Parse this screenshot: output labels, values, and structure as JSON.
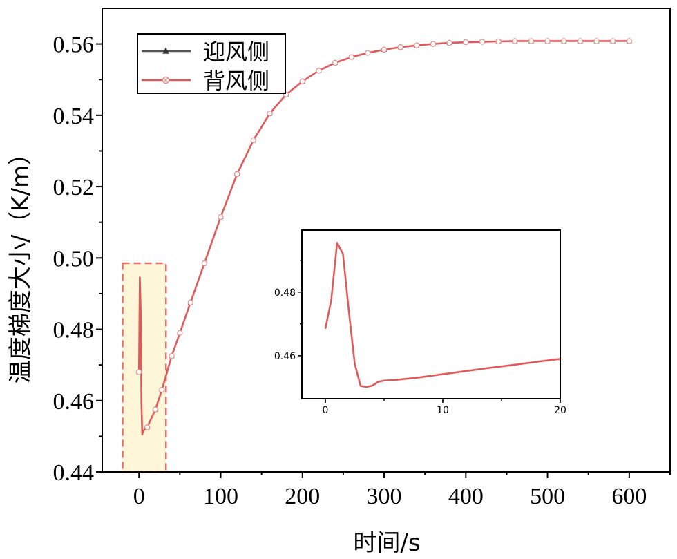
{
  "chart_data": [
    {
      "type": "line",
      "xlabel": "时间/s",
      "ylabel": "温度梯度大小/（K/m）",
      "xlim": [
        -45,
        650
      ],
      "ylim": [
        0.44,
        0.57
      ],
      "xticks": [
        "0",
        "100",
        "200",
        "300",
        "400",
        "500",
        "600"
      ],
      "yticks": [
        "0.44",
        "0.46",
        "0.48",
        "0.50",
        "0.52",
        "0.54",
        "0.56"
      ],
      "legend": "top-left",
      "grid": false,
      "highlight_region": {
        "x": [
          -20,
          33
        ],
        "y": [
          0.44,
          0.4985
        ]
      },
      "series": [
        {
          "name": "迎风侧",
          "color": "#555555",
          "marker": "triangle",
          "x": [
            0,
            1,
            2,
            3,
            4,
            5,
            10,
            20,
            28,
            40,
            50,
            63,
            80,
            100,
            120,
            140,
            160,
            180,
            200,
            220,
            240,
            260,
            280,
            300,
            320,
            340,
            360,
            380,
            400,
            420,
            440,
            460,
            480,
            500,
            520,
            540,
            560,
            580,
            600
          ],
          "y": [
            0.468,
            0.4945,
            0.486,
            0.459,
            0.4505,
            0.4515,
            0.4525,
            0.4575,
            0.463,
            0.4725,
            0.479,
            0.4875,
            0.4985,
            0.5115,
            0.5235,
            0.533,
            0.5405,
            0.5458,
            0.5495,
            0.5525,
            0.5547,
            0.5563,
            0.5575,
            0.5584,
            0.5591,
            0.5596,
            0.56,
            0.5603,
            0.5605,
            0.5606,
            0.5607,
            0.5608,
            0.5608,
            0.5608,
            0.5608,
            0.5608,
            0.5608,
            0.5608,
            0.5608
          ]
        },
        {
          "name": "背风侧",
          "color": "#e05a5a",
          "marker": "circle-x",
          "x": [
            0,
            1,
            2,
            3,
            4,
            5,
            10,
            20,
            28,
            40,
            50,
            63,
            80,
            100,
            120,
            140,
            160,
            180,
            200,
            220,
            240,
            260,
            280,
            300,
            320,
            340,
            360,
            380,
            400,
            420,
            440,
            460,
            480,
            500,
            520,
            540,
            560,
            580,
            600
          ],
          "y": [
            0.468,
            0.4945,
            0.486,
            0.459,
            0.4505,
            0.4515,
            0.4525,
            0.4575,
            0.463,
            0.4725,
            0.479,
            0.4875,
            0.4985,
            0.5115,
            0.5235,
            0.533,
            0.5405,
            0.5458,
            0.5495,
            0.5525,
            0.5547,
            0.5563,
            0.5575,
            0.5584,
            0.5591,
            0.5596,
            0.56,
            0.5603,
            0.5605,
            0.5606,
            0.5607,
            0.5608,
            0.5608,
            0.5608,
            0.5608,
            0.5608,
            0.5608,
            0.5608,
            0.5608
          ]
        }
      ]
    },
    {
      "type": "line",
      "xlim": [
        -2,
        20
      ],
      "ylim": [
        0.4465,
        0.4995
      ],
      "xticks": [
        "0",
        "10",
        "20"
      ],
      "yticks": [
        "0.46",
        "0.48"
      ],
      "grid": false,
      "series": [
        {
          "color": "#e05a5a",
          "x": [
            0,
            0.5,
            1,
            1.5,
            2,
            2.5,
            3,
            3.5,
            4,
            4.5,
            5,
            6,
            8,
            10,
            12,
            14,
            16,
            18,
            20
          ],
          "y": [
            0.4685,
            0.4775,
            0.4955,
            0.492,
            0.474,
            0.4575,
            0.4505,
            0.4502,
            0.4506,
            0.4518,
            0.4522,
            0.4524,
            0.4532,
            0.4542,
            0.4552,
            0.4562,
            0.4571,
            0.4581,
            0.459
          ]
        }
      ]
    }
  ]
}
